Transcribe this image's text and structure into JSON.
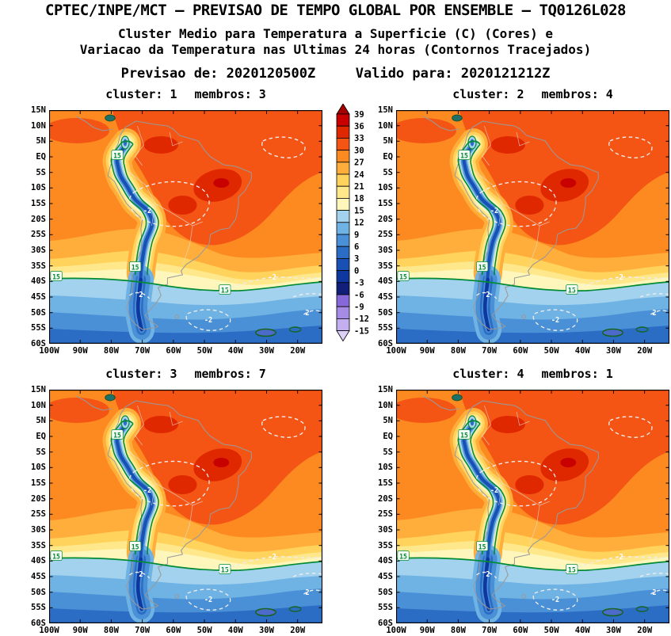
{
  "header": {
    "title": "CPTEC/INPE/MCT — PREVISAO DE TEMPO GLOBAL POR ENSEMBLE — TQ0126L028",
    "subtitle1": "Cluster Medio para Temperatura a Superficie (C) (Cores) e",
    "subtitle2": "Variacao da Temperatura nas Ultimas 24 horas (Contornos Tracejados)",
    "previsao_label": "Previsao de:",
    "previsao_value": "2020120500Z",
    "valido_label": "Valido para:",
    "valido_value": "2020121212Z"
  },
  "chart_data": {
    "type": "heatmap",
    "title": "Cluster Medio para Temperatura a Superficie (C) (Cores) e Variacao da Temperatura nas Ultimas 24 horas (Contornos Tracejados)",
    "labels": {
      "cluster": "cluster:",
      "membros": "membros:"
    },
    "panels": [
      {
        "cluster": "1",
        "membros": "3"
      },
      {
        "cluster": "2",
        "membros": "4"
      },
      {
        "cluster": "3",
        "membros": "7"
      },
      {
        "cluster": "4",
        "membros": "1"
      }
    ],
    "axes": {
      "lat_ticks": [
        "15N",
        "10N",
        "5N",
        "EQ",
        "5S",
        "10S",
        "15S",
        "20S",
        "25S",
        "30S",
        "35S",
        "40S",
        "45S",
        "50S",
        "55S",
        "60S"
      ],
      "lon_ticks": [
        "100W",
        "90W",
        "80W",
        "70W",
        "60W",
        "50W",
        "40W",
        "30W",
        "20W"
      ],
      "lat_range": [
        "15N",
        "60S"
      ],
      "lon_range": [
        "100W",
        "12W"
      ]
    },
    "colorbar": {
      "levels": [
        "39",
        "36",
        "33",
        "30",
        "27",
        "24",
        "21",
        "18",
        "15",
        "12",
        "9",
        "6",
        "3",
        "0",
        "-3",
        "-6",
        "-9",
        "-12",
        "-15"
      ],
      "colors": [
        "#A50000",
        "#C80000",
        "#E02800",
        "#F55514",
        "#FC8A20",
        "#FFAE3C",
        "#FFD35C",
        "#FFE88C",
        "#FFF6BC",
        "#A2D2EE",
        "#6FB2E4",
        "#4A90D6",
        "#2B6CC4",
        "#1850B4",
        "#0E38A0",
        "#121F78",
        "#8768D8",
        "#A58BE4",
        "#C3AFF0",
        "#DCCFF8"
      ]
    },
    "contours": {
      "isotherm_15_label": "15",
      "isotherm_color": "#008A32",
      "variation_labels": [
        "-2",
        "2"
      ],
      "variation_line_color": "#ECECEC",
      "low_anomaly_outline_color": "#176321"
    },
    "map": {
      "coastline_color": "#999999",
      "border_color": "#E0E0E0"
    }
  }
}
